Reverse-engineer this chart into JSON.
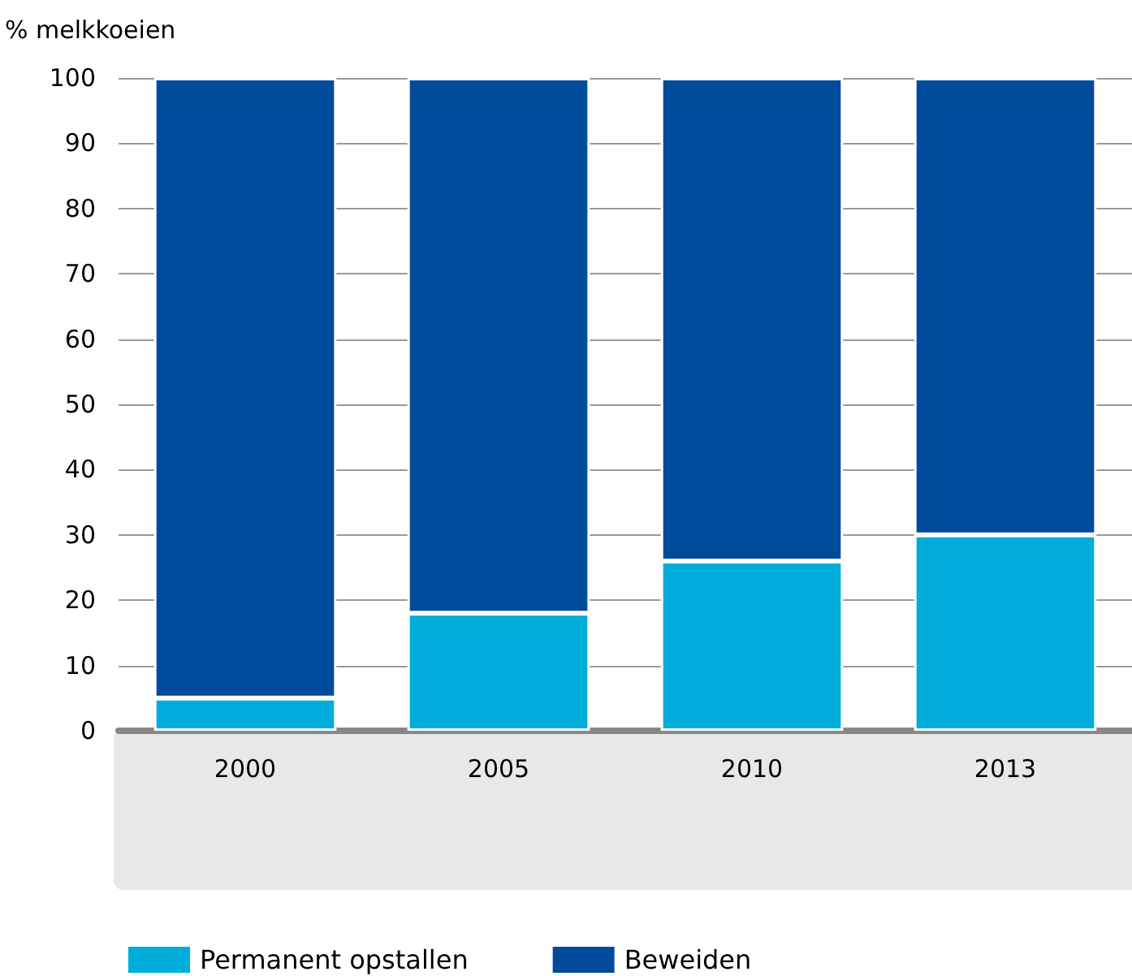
{
  "chart_data": {
    "type": "bar",
    "stacked": true,
    "ylabel": "% melkkoeien",
    "categories": [
      "2000",
      "2005",
      "2010",
      "2013"
    ],
    "series": [
      {
        "name": "Permanent opstallen",
        "color": "#00acd9",
        "values": [
          5,
          18,
          26,
          30
        ]
      },
      {
        "name": "Beweiden",
        "color": "#004b9b",
        "values": [
          95,
          82,
          74,
          70
        ]
      }
    ],
    "ylim": [
      0,
      100
    ],
    "yticks": [
      0,
      10,
      20,
      30,
      40,
      50,
      60,
      70,
      80,
      90,
      100
    ],
    "grid": "y",
    "legend": "bottom left"
  }
}
